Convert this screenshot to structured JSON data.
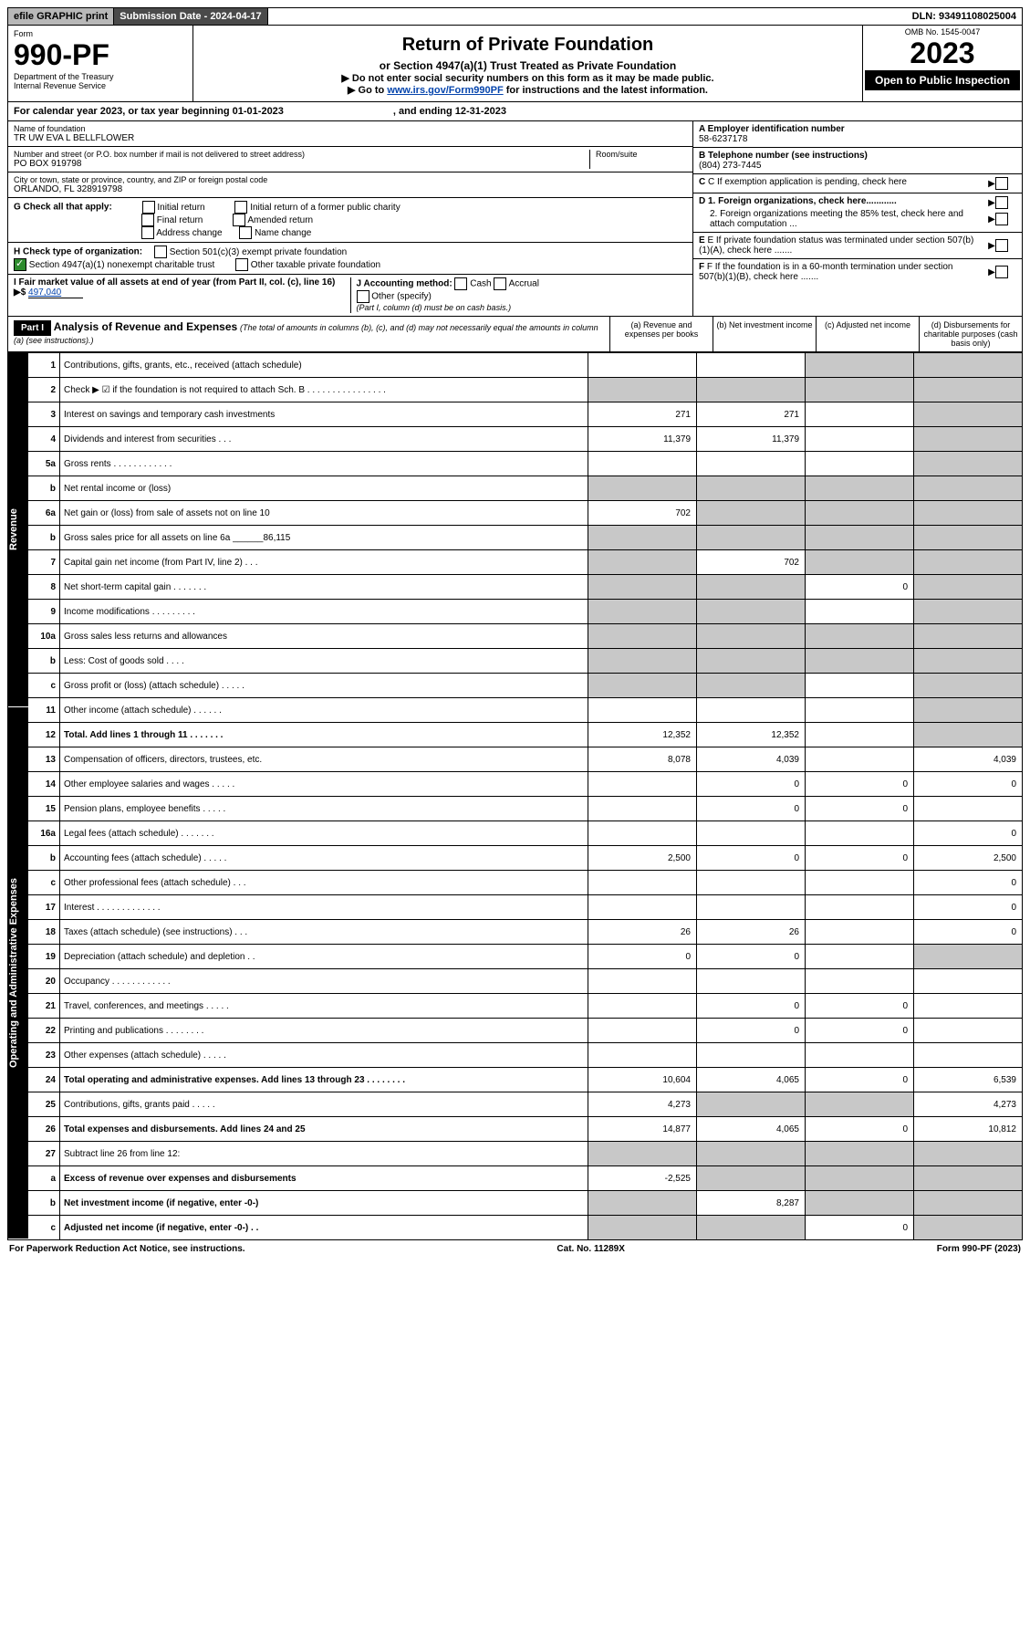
{
  "topbar": {
    "efile": "efile GRAPHIC print",
    "submission": "Submission Date - 2024-04-17",
    "dln": "DLN: 93491108025004"
  },
  "header": {
    "form_label": "Form",
    "form_no": "990-PF",
    "dept": "Department of the Treasury",
    "irs": "Internal Revenue Service",
    "title": "Return of Private Foundation",
    "subtitle": "or Section 4947(a)(1) Trust Treated as Private Foundation",
    "instr1": "▶ Do not enter social security numbers on this form as it may be made public.",
    "instr2_pre": "▶ Go to ",
    "instr2_link": "www.irs.gov/Form990PF",
    "instr2_post": " for instructions and the latest information.",
    "omb": "OMB No. 1545-0047",
    "year": "2023",
    "inspection": "Open to Public Inspection"
  },
  "calyear": {
    "text_a": "For calendar year 2023, or tax year beginning 01-01-2023",
    "text_b": ", and ending 12-31-2023"
  },
  "info": {
    "name_label": "Name of foundation",
    "name": "TR UW EVA L BELLFLOWER",
    "addr_label": "Number and street (or P.O. box number if mail is not delivered to street address)",
    "addr": "PO BOX 919798",
    "room_label": "Room/suite",
    "city_label": "City or town, state or province, country, and ZIP or foreign postal code",
    "city": "ORLANDO, FL  328919798",
    "g_label": "G Check all that apply:",
    "g_opts": [
      "Initial return",
      "Final return",
      "Address change",
      "Initial return of a former public charity",
      "Amended return",
      "Name change"
    ],
    "h_label": "H Check type of organization:",
    "h_opt1": "Section 501(c)(3) exempt private foundation",
    "h_opt2": "Section 4947(a)(1) nonexempt charitable trust",
    "h_opt3": "Other taxable private foundation",
    "i_label": "I Fair market value of all assets at end of year (from Part II, col. (c), line 16) ▶$",
    "i_value": "497,040",
    "j_label": "J Accounting method:",
    "j_opts": [
      "Cash",
      "Accrual",
      "Other (specify)"
    ],
    "j_note": "(Part I, column (d) must be on cash basis.)",
    "a_label": "A Employer identification number",
    "a_value": "58-6237178",
    "b_label": "B Telephone number (see instructions)",
    "b_value": "(804) 273-7445",
    "c_label": "C If exemption application is pending, check here",
    "d1_label": "D 1. Foreign organizations, check here............",
    "d2_label": "2. Foreign organizations meeting the 85% test, check here and attach computation ...",
    "e_label": "E If private foundation status was terminated under section 507(b)(1)(A), check here .......",
    "f_label": "F If the foundation is in a 60-month termination under section 507(b)(1)(B), check here ......."
  },
  "part1": {
    "label": "Part I",
    "title": "Analysis of Revenue and Expenses",
    "title_note": "(The total of amounts in columns (b), (c), and (d) may not necessarily equal the amounts in column (a) (see instructions).)",
    "col_a": "(a) Revenue and expenses per books",
    "col_b": "(b) Net investment income",
    "col_c": "(c) Adjusted net income",
    "col_d": "(d) Disbursements for charitable purposes (cash basis only)"
  },
  "side_labels": {
    "rev": "Revenue",
    "exp": "Operating and Administrative Expenses"
  },
  "rows": [
    {
      "n": "1",
      "lbl": "Contributions, gifts, grants, etc., received (attach schedule)",
      "a": "",
      "b": "",
      "c": "shade",
      "d": "shade"
    },
    {
      "n": "2",
      "lbl": "Check ▶ ☑ if the foundation is not required to attach Sch. B  . . . . . . . . . . . . . . . .",
      "a": "shade",
      "b": "shade",
      "c": "shade",
      "d": "shade"
    },
    {
      "n": "3",
      "lbl": "Interest on savings and temporary cash investments",
      "a": "271",
      "b": "271",
      "c": "",
      "d": "shade"
    },
    {
      "n": "4",
      "lbl": "Dividends and interest from securities  . . .",
      "a": "11,379",
      "b": "11,379",
      "c": "",
      "d": "shade"
    },
    {
      "n": "5a",
      "lbl": "Gross rents  . . . . . . . . . . . .",
      "a": "",
      "b": "",
      "c": "",
      "d": "shade"
    },
    {
      "n": "b",
      "lbl": "Net rental income or (loss)",
      "a": "shade",
      "b": "shade",
      "c": "shade",
      "d": "shade"
    },
    {
      "n": "6a",
      "lbl": "Net gain or (loss) from sale of assets not on line 10",
      "a": "702",
      "b": "shade",
      "c": "shade",
      "d": "shade"
    },
    {
      "n": "b",
      "lbl": "Gross sales price for all assets on line 6a ______86,115",
      "a": "shade",
      "b": "shade",
      "c": "shade",
      "d": "shade"
    },
    {
      "n": "7",
      "lbl": "Capital gain net income (from Part IV, line 2)  . . .",
      "a": "shade",
      "b": "702",
      "c": "shade",
      "d": "shade"
    },
    {
      "n": "8",
      "lbl": "Net short-term capital gain  . . . . . . .",
      "a": "shade",
      "b": "shade",
      "c": "0",
      "d": "shade"
    },
    {
      "n": "9",
      "lbl": "Income modifications  . . . . . . . . .",
      "a": "shade",
      "b": "shade",
      "c": "",
      "d": "shade"
    },
    {
      "n": "10a",
      "lbl": "Gross sales less returns and allowances",
      "a": "shade",
      "b": "shade",
      "c": "shade",
      "d": "shade"
    },
    {
      "n": "b",
      "lbl": "Less: Cost of goods sold  . . . .",
      "a": "shade",
      "b": "shade",
      "c": "shade",
      "d": "shade"
    },
    {
      "n": "c",
      "lbl": "Gross profit or (loss) (attach schedule)  . . . . .",
      "a": "shade",
      "b": "shade",
      "c": "",
      "d": "shade"
    },
    {
      "n": "11",
      "lbl": "Other income (attach schedule)  . . . . . .",
      "a": "",
      "b": "",
      "c": "",
      "d": "shade"
    },
    {
      "n": "12",
      "lbl": "Total. Add lines 1 through 11  . . . . . . .",
      "bold": true,
      "a": "12,352",
      "b": "12,352",
      "c": "",
      "d": "shade"
    },
    {
      "n": "13",
      "lbl": "Compensation of officers, directors, trustees, etc.",
      "a": "8,078",
      "b": "4,039",
      "c": "",
      "d": "4,039"
    },
    {
      "n": "14",
      "lbl": "Other employee salaries and wages  . . . . .",
      "a": "",
      "b": "0",
      "c": "0",
      "d": "0"
    },
    {
      "n": "15",
      "lbl": "Pension plans, employee benefits  . . . . .",
      "a": "",
      "b": "0",
      "c": "0",
      "d": ""
    },
    {
      "n": "16a",
      "lbl": "Legal fees (attach schedule)  . . . . . . .",
      "a": "",
      "b": "",
      "c": "",
      "d": "0"
    },
    {
      "n": "b",
      "lbl": "Accounting fees (attach schedule)  . . . . .",
      "a": "2,500",
      "b": "0",
      "c": "0",
      "d": "2,500"
    },
    {
      "n": "c",
      "lbl": "Other professional fees (attach schedule)  . . .",
      "a": "",
      "b": "",
      "c": "",
      "d": "0"
    },
    {
      "n": "17",
      "lbl": "Interest  . . . . . . . . . . . . .",
      "a": "",
      "b": "",
      "c": "",
      "d": "0"
    },
    {
      "n": "18",
      "lbl": "Taxes (attach schedule) (see instructions)  . . .",
      "a": "26",
      "b": "26",
      "c": "",
      "d": "0"
    },
    {
      "n": "19",
      "lbl": "Depreciation (attach schedule) and depletion  . .",
      "a": "0",
      "b": "0",
      "c": "",
      "d": "shade"
    },
    {
      "n": "20",
      "lbl": "Occupancy  . . . . . . . . . . . .",
      "a": "",
      "b": "",
      "c": "",
      "d": ""
    },
    {
      "n": "21",
      "lbl": "Travel, conferences, and meetings  . . . . .",
      "a": "",
      "b": "0",
      "c": "0",
      "d": ""
    },
    {
      "n": "22",
      "lbl": "Printing and publications  . . . . . . . .",
      "a": "",
      "b": "0",
      "c": "0",
      "d": ""
    },
    {
      "n": "23",
      "lbl": "Other expenses (attach schedule)  . . . . .",
      "a": "",
      "b": "",
      "c": "",
      "d": ""
    },
    {
      "n": "24",
      "lbl": "Total operating and administrative expenses. Add lines 13 through 23  . . . . . . . .",
      "bold": true,
      "a": "10,604",
      "b": "4,065",
      "c": "0",
      "d": "6,539"
    },
    {
      "n": "25",
      "lbl": "Contributions, gifts, grants paid  . . . . .",
      "a": "4,273",
      "b": "shade",
      "c": "shade",
      "d": "4,273"
    },
    {
      "n": "26",
      "lbl": "Total expenses and disbursements. Add lines 24 and 25",
      "bold": true,
      "a": "14,877",
      "b": "4,065",
      "c": "0",
      "d": "10,812"
    },
    {
      "n": "27",
      "lbl": "Subtract line 26 from line 12:",
      "a": "shade",
      "b": "shade",
      "c": "shade",
      "d": "shade"
    },
    {
      "n": "a",
      "lbl": "Excess of revenue over expenses and disbursements",
      "bold": true,
      "a": "-2,525",
      "b": "shade",
      "c": "shade",
      "d": "shade"
    },
    {
      "n": "b",
      "lbl": "Net investment income (if negative, enter -0-)",
      "bold": true,
      "a": "shade",
      "b": "8,287",
      "c": "shade",
      "d": "shade"
    },
    {
      "n": "c",
      "lbl": "Adjusted net income (if negative, enter -0-)  . .",
      "bold": true,
      "a": "shade",
      "b": "shade",
      "c": "0",
      "d": "shade"
    }
  ],
  "footer": {
    "left": "For Paperwork Reduction Act Notice, see instructions.",
    "mid": "Cat. No. 11289X",
    "right": "Form 990-PF (2023)"
  }
}
